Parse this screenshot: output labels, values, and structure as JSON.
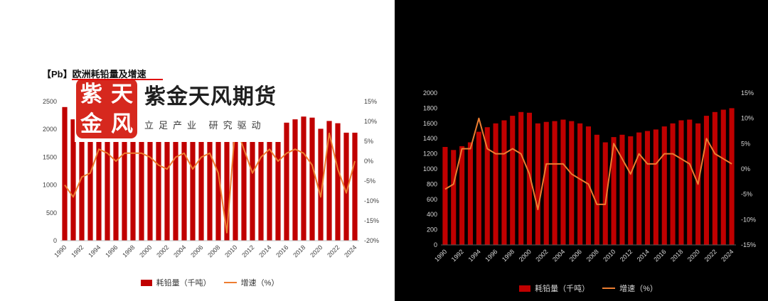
{
  "watermark": {
    "seal_chars": [
      "紫",
      "天",
      "金",
      "风"
    ],
    "brand": "紫金天风期货",
    "slogan": "立足产业 研究驱动"
  },
  "colors": {
    "bar": "#C00000",
    "line": "#ED7D31",
    "seal": "#D6281E",
    "underline": "#E00000",
    "dark_bg": "#000000"
  },
  "chart_data": [
    {
      "type": "bar+line",
      "title": "【Pb】欧洲耗铅量及增速",
      "theme": "light",
      "legend_position": "bottom",
      "categories": [
        1990,
        1991,
        1992,
        1993,
        1994,
        1995,
        1996,
        1997,
        1998,
        1999,
        2000,
        2001,
        2002,
        2003,
        2004,
        2005,
        2006,
        2007,
        2008,
        2009,
        2010,
        2011,
        2012,
        2013,
        2014,
        2015,
        2016,
        2017,
        2018,
        2019,
        2020,
        2021,
        2022,
        2023,
        2024
      ],
      "x_tick_every": 2,
      "left_axis": {
        "min": 0,
        "max": 2500,
        "step": 500
      },
      "right_axis": {
        "min": -20,
        "max": 15,
        "step": 5,
        "format": "percent"
      },
      "series": [
        {
          "name": "耗铅量（千吨）",
          "type": "bar",
          "axis": "left",
          "values": [
            2400,
            2180,
            2100,
            2040,
            2100,
            2140,
            2140,
            2180,
            2230,
            2270,
            2290,
            2270,
            2220,
            2240,
            2290,
            2240,
            2260,
            2310,
            2240,
            1840,
            2000,
            2060,
            2000,
            2020,
            2080,
            2080,
            2120,
            2180,
            2230,
            2210,
            2010,
            2150,
            2110,
            1940,
            1940
          ]
        },
        {
          "name": "增速（%）",
          "type": "line",
          "axis": "right",
          "values": [
            -6,
            -9,
            -4,
            -3,
            3,
            2,
            0,
            2,
            2,
            2,
            1,
            -1,
            -2,
            1,
            2,
            -2,
            1,
            2,
            -3,
            -18,
            9,
            3,
            -3,
            1,
            3,
            0,
            2,
            3,
            2,
            -1,
            -9,
            7,
            -2,
            -8,
            0
          ]
        }
      ]
    },
    {
      "type": "bar+line",
      "title": "",
      "theme": "dark",
      "legend_position": "bottom",
      "categories": [
        1990,
        1991,
        1992,
        1993,
        1994,
        1995,
        1996,
        1997,
        1998,
        1999,
        2000,
        2001,
        2002,
        2003,
        2004,
        2005,
        2006,
        2007,
        2008,
        2009,
        2010,
        2011,
        2012,
        2013,
        2014,
        2015,
        2016,
        2017,
        2018,
        2019,
        2020,
        2021,
        2022,
        2023,
        2024
      ],
      "x_tick_every": 2,
      "left_axis": {
        "min": 0,
        "max": 2000,
        "step": 200
      },
      "right_axis": {
        "min": -15,
        "max": 15,
        "step": 5,
        "format": "percent"
      },
      "series": [
        {
          "name": "耗铅量（千吨）",
          "type": "bar",
          "axis": "left",
          "values": [
            1290,
            1250,
            1300,
            1350,
            1490,
            1550,
            1600,
            1640,
            1700,
            1750,
            1740,
            1600,
            1620,
            1630,
            1650,
            1630,
            1600,
            1560,
            1450,
            1350,
            1420,
            1450,
            1430,
            1480,
            1500,
            1520,
            1560,
            1600,
            1640,
            1650,
            1600,
            1700,
            1750,
            1780,
            1800
          ]
        },
        {
          "name": "增速（%）",
          "type": "line",
          "axis": "right",
          "values": [
            -4,
            -3,
            4,
            4,
            10,
            4,
            3,
            3,
            4,
            3,
            -1,
            -8,
            1,
            1,
            1,
            -1,
            -2,
            -3,
            -7,
            -7,
            5,
            2,
            -1,
            3,
            1,
            1,
            3,
            3,
            2,
            1,
            -3,
            6,
            3,
            2,
            1
          ]
        }
      ]
    }
  ]
}
